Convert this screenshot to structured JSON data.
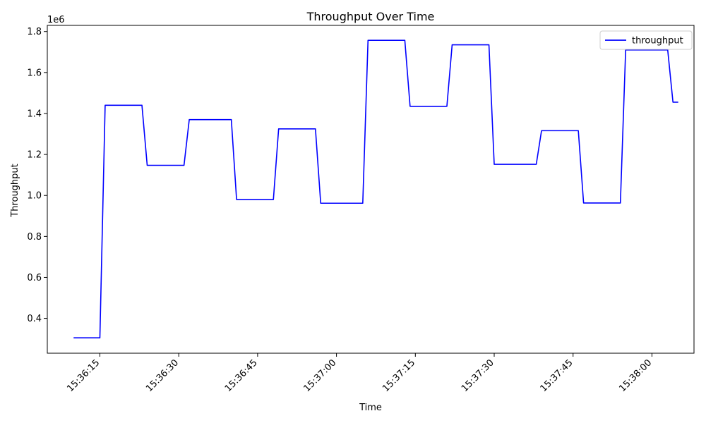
{
  "chart_data": {
    "type": "line",
    "title": "Throughput Over Time",
    "xlabel": "Time",
    "ylabel": "Throughput",
    "y_offset_label": "1e6",
    "y_ticks": [
      0.4,
      0.6,
      0.8,
      1.0,
      1.2,
      1.4,
      1.6,
      1.8
    ],
    "y_tick_labels": [
      "0.4",
      "0.6",
      "0.8",
      "1.0",
      "1.2",
      "1.4",
      "1.6",
      "1.8"
    ],
    "ylim": [
      230000,
      1830000
    ],
    "xlim": [
      "15:36:05",
      "15:38:08"
    ],
    "x_ticks": [
      "15:36:15",
      "15:36:30",
      "15:36:45",
      "15:37:00",
      "15:37:15",
      "15:37:30",
      "15:37:45",
      "15:38:00"
    ],
    "grid": false,
    "legend_position": "top-right",
    "series": [
      {
        "name": "throughput",
        "color": "#0000ff",
        "x": [
          "15:36:10",
          "15:36:15",
          "15:36:16",
          "15:36:23",
          "15:36:24",
          "15:36:31",
          "15:36:32",
          "15:36:40",
          "15:36:41",
          "15:36:48",
          "15:36:49",
          "15:36:56",
          "15:36:57",
          "15:37:05",
          "15:37:06",
          "15:37:13",
          "15:37:14",
          "15:37:21",
          "15:37:22",
          "15:37:29",
          "15:37:30",
          "15:37:38",
          "15:37:39",
          "15:37:46",
          "15:37:47",
          "15:37:54",
          "15:37:55",
          "15:38:03",
          "15:38:04",
          "15:38:05"
        ],
        "values": [
          305000,
          305000,
          1440000,
          1440000,
          1147000,
          1147000,
          1370000,
          1370000,
          980000,
          980000,
          1325000,
          1325000,
          962000,
          962000,
          1757000,
          1757000,
          1435000,
          1435000,
          1735000,
          1735000,
          1152000,
          1152000,
          1316000,
          1316000,
          963000,
          963000,
          1710000,
          1710000,
          1455000,
          1455000
        ]
      }
    ]
  }
}
